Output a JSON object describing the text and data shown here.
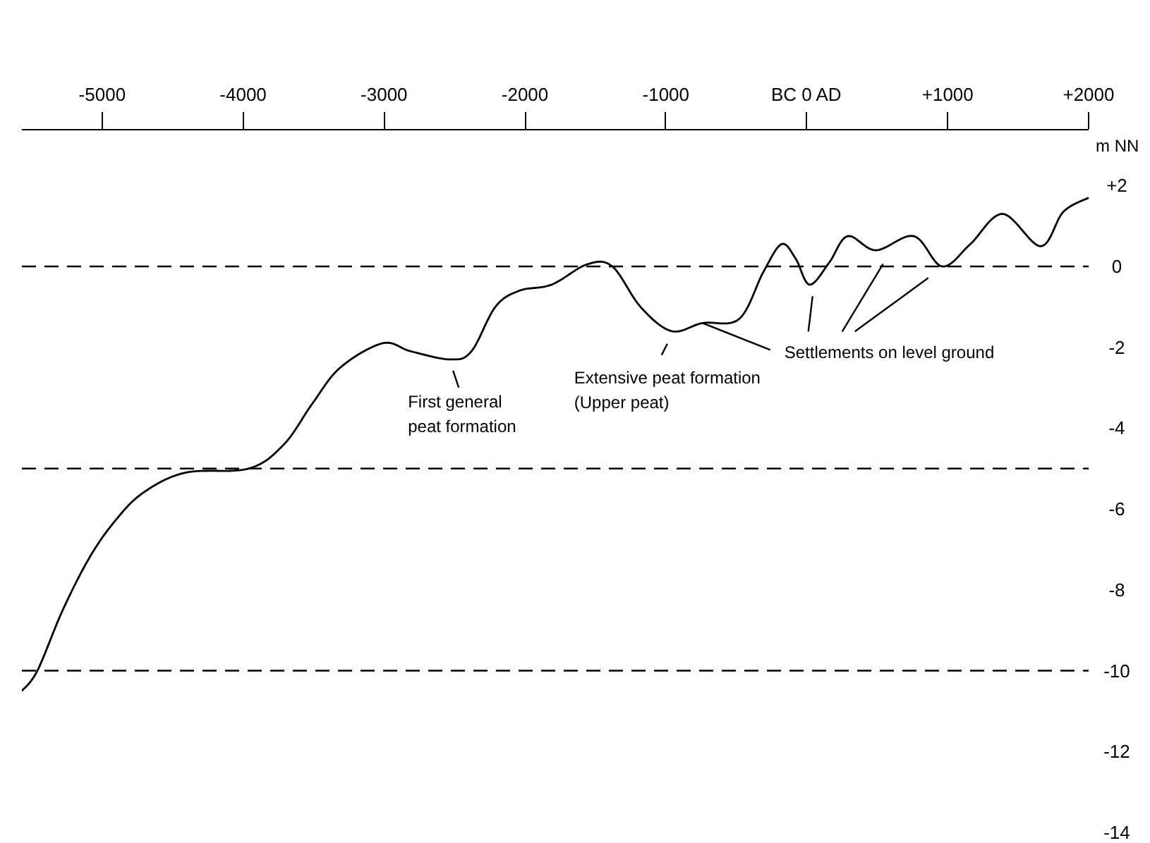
{
  "chart_data": {
    "type": "line",
    "ylabel": "m NN",
    "x": [
      -5570,
      -5460,
      -5280,
      -5090,
      -4910,
      -4710,
      -4410,
      -3960,
      -3710,
      -3510,
      -3310,
      -3010,
      -2810,
      -2530,
      -2380,
      -2210,
      -2040,
      -1810,
      -1560,
      -1380,
      -1180,
      -960,
      -740,
      -480,
      -310,
      -180,
      -80,
      20,
      160,
      290,
      490,
      760,
      960,
      1160,
      1390,
      1660,
      1820,
      2000
    ],
    "series": [
      {
        "color": "#000000",
        "values": [
          -10.5,
          -10.0,
          -8.5,
          -7.2,
          -6.3,
          -5.6,
          -5.1,
          -5.0,
          -4.4,
          -3.4,
          -2.5,
          -1.9,
          -2.1,
          -2.3,
          -2.1,
          -1.0,
          -0.6,
          -0.45,
          0.05,
          0.0,
          -1.0,
          -1.6,
          -1.4,
          -1.3,
          -0.15,
          0.55,
          0.2,
          -0.45,
          0.1,
          0.75,
          0.4,
          0.75,
          0.0,
          0.55,
          1.3,
          0.5,
          1.35,
          1.7
        ]
      }
    ],
    "xlim": [
      -5570,
      2000
    ],
    "ylim": [
      -14,
      3.4
    ],
    "xticks": [
      -5000,
      -4000,
      -3000,
      -2000,
      -1000,
      {
        "value": 0,
        "label": "BC 0 AD"
      },
      {
        "value": 1000,
        "label": "+1000"
      },
      {
        "value": 2000,
        "label": "+2000"
      }
    ],
    "yticks": [
      {
        "value": 2,
        "label": "+2"
      },
      0,
      -2,
      -4,
      -6,
      -8,
      -10,
      -12,
      -14
    ],
    "ref_lines": [
      {
        "axis": "y",
        "value": 0,
        "color": "#000000",
        "line_style": "dashed"
      },
      {
        "axis": "y",
        "value": -5,
        "color": "#000000",
        "line_style": "dashed"
      },
      {
        "axis": "y",
        "value": -10,
        "color": "#000000",
        "line_style": "dashed"
      }
    ],
    "annotations": [
      {
        "text": "First general\npeat formation",
        "x": -2530,
        "y": -2.3
      },
      {
        "text": "Extensive peat formation\n(Upper peat)",
        "x": -960,
        "y": -1.6
      },
      {
        "text": "Settlements on level ground",
        "x": -740,
        "y": -1.4
      }
    ],
    "grid": false,
    "marker": "none",
    "line_style": "solid"
  }
}
